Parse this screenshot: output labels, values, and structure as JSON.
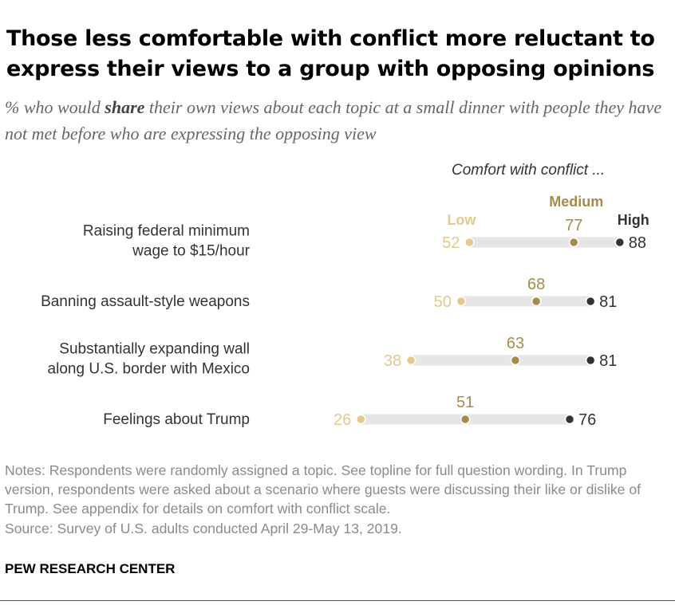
{
  "title": "Those less comfortable with conflict more reluctant to express their views to a group with opposing opinions",
  "subtitle": {
    "prefix": "% who would ",
    "emphasis": "share",
    "suffix": " their own views about each topic at a small dinner with people they have not met before who are expressing the opposing view"
  },
  "colors": {
    "low": "#e2c98d",
    "medium": "#a58c4a",
    "high": "#333333",
    "bar": "#e6e6e6",
    "label": "#333333"
  },
  "chart_data": {
    "type": "dot",
    "legend_title": "Comfort with conflict ...",
    "series_names": [
      "Low",
      "Medium",
      "High"
    ],
    "categories": [
      {
        "lines": [
          "Raising federal minimum",
          "wage to $15/hour"
        ],
        "values": {
          "low": 52,
          "medium": 77,
          "high": 88
        }
      },
      {
        "lines": [
          "Banning assault-style weapons"
        ],
        "values": {
          "low": 50,
          "medium": 68,
          "high": 81
        }
      },
      {
        "lines": [
          "Substantially expanding wall",
          "along U.S. border with Mexico"
        ],
        "values": {
          "low": 38,
          "medium": 63,
          "high": 81
        }
      },
      {
        "lines": [
          "Feelings about Trump"
        ],
        "values": {
          "low": 26,
          "medium": 51,
          "high": 76
        }
      }
    ]
  },
  "notes": [
    "Notes: Respondents were randomly assigned a topic. See topline for full question wording. In Trump version, respondents were asked about a scenario where guests were discussing their like or dislike of Trump. See appendix for details on comfort with conflict scale.",
    "Source: Survey of U.S. adults conducted April 29-May 13, 2019."
  ],
  "source_org": "PEW RESEARCH CENTER"
}
